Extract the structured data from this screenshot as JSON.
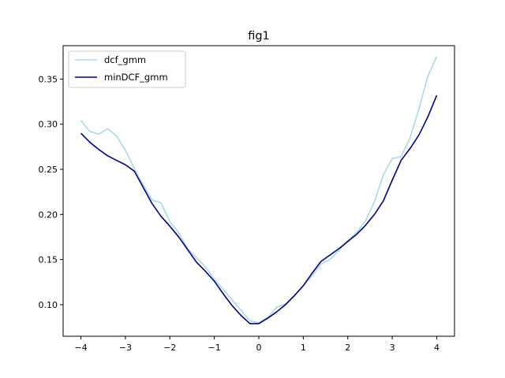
{
  "chart_data": {
    "type": "line",
    "title": "fig1",
    "xlabel": "",
    "ylabel": "",
    "xlim": [
      -4.4,
      4.4
    ],
    "ylim": [
      0.065,
      0.387
    ],
    "xticks": [
      -4,
      -3,
      -2,
      -1,
      0,
      1,
      2,
      3,
      4
    ],
    "xtick_labels": [
      "−4",
      "−3",
      "−2",
      "−1",
      "0",
      "1",
      "2",
      "3",
      "4"
    ],
    "yticks": [
      0.1,
      0.15,
      0.2,
      0.25,
      0.3,
      0.35
    ],
    "ytick_labels": [
      "0.10",
      "0.15",
      "0.20",
      "0.25",
      "0.30",
      "0.35"
    ],
    "grid": false,
    "legend_position": "upper-left",
    "x": [
      -4.0,
      -3.8,
      -3.6,
      -3.4,
      -3.2,
      -3.0,
      -2.8,
      -2.6,
      -2.4,
      -2.2,
      -2.0,
      -1.8,
      -1.6,
      -1.4,
      -1.2,
      -1.0,
      -0.8,
      -0.6,
      -0.4,
      -0.2,
      0.0,
      0.2,
      0.4,
      0.6,
      0.8,
      1.0,
      1.2,
      1.4,
      1.6,
      1.8,
      2.0,
      2.2,
      2.4,
      2.6,
      2.8,
      3.0,
      3.2,
      3.4,
      3.6,
      3.8,
      4.0
    ],
    "series": [
      {
        "name": "dcf_gmm",
        "color": "#add8e6",
        "values": [
          0.304,
          0.292,
          0.289,
          0.295,
          0.287,
          0.271,
          0.251,
          0.233,
          0.216,
          0.213,
          0.192,
          0.18,
          0.162,
          0.152,
          0.142,
          0.128,
          0.117,
          0.105,
          0.094,
          0.082,
          0.08,
          0.086,
          0.097,
          0.101,
          0.11,
          0.121,
          0.132,
          0.145,
          0.15,
          0.16,
          0.171,
          0.18,
          0.193,
          0.214,
          0.244,
          0.262,
          0.264,
          0.285,
          0.317,
          0.353,
          0.375
        ]
      },
      {
        "name": "minDCF_gmm",
        "color": "#00008b",
        "values": [
          0.29,
          0.28,
          0.272,
          0.265,
          0.26,
          0.255,
          0.248,
          0.23,
          0.212,
          0.198,
          0.187,
          0.175,
          0.161,
          0.147,
          0.137,
          0.126,
          0.112,
          0.099,
          0.088,
          0.079,
          0.079,
          0.085,
          0.092,
          0.1,
          0.11,
          0.121,
          0.135,
          0.148,
          0.155,
          0.162,
          0.17,
          0.178,
          0.188,
          0.2,
          0.215,
          0.238,
          0.26,
          0.273,
          0.288,
          0.308,
          0.332
        ]
      }
    ]
  }
}
